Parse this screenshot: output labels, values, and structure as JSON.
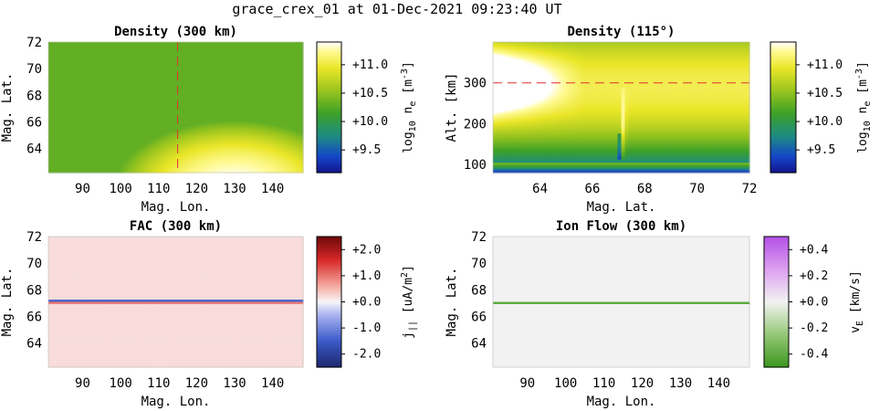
{
  "figure": {
    "title": "grace_crex_01 at 01-Dec-2021 09:23:40 UT"
  },
  "chart_data": [
    {
      "id": "density-300km",
      "type": "heatmap",
      "title": "Density (300 km)",
      "xlabel": "Mag. Lon.",
      "ylabel": "Mag. Lat.",
      "xlim": [
        81,
        148
      ],
      "ylim": [
        62.2,
        72
      ],
      "xticks": [
        "90",
        "100",
        "110",
        "120",
        "130",
        "140"
      ],
      "yticks": [
        "64",
        "66",
        "68",
        "70",
        "72"
      ],
      "xtick_values": [
        90,
        100,
        110,
        120,
        130,
        140
      ],
      "ytick_values": [
        64,
        66,
        68,
        70,
        72
      ],
      "reference_line": {
        "axis": "x",
        "value": 115,
        "color": "#e03030",
        "style": "dashed"
      },
      "field": "density-map",
      "colorbar": {
        "colormap": "ocean-like",
        "range": [
          9.1,
          11.4
        ],
        "ticks": [
          "+9.5",
          "+10.0",
          "+10.5",
          "+11.0"
        ],
        "tick_values": [
          9.5,
          10.0,
          10.5,
          11.0
        ],
        "label_main": "log",
        "label_sub": "10",
        "label_main2": " n",
        "label_sub2": "e",
        "label_rest": " [m",
        "label_sup": "-3",
        "label_end": "]"
      }
    },
    {
      "id": "density-115deg",
      "type": "heatmap",
      "title": "Density (115°)",
      "xlabel": "Mag. Lat.",
      "ylabel": "Alt. [km]",
      "xlim": [
        62.2,
        72
      ],
      "ylim": [
        80,
        400
      ],
      "xticks": [
        "64",
        "66",
        "68",
        "70",
        "72"
      ],
      "yticks": [
        "100",
        "200",
        "300"
      ],
      "xtick_values": [
        64,
        66,
        68,
        70,
        72
      ],
      "ytick_values": [
        100,
        200,
        300
      ],
      "reference_line": {
        "axis": "y",
        "value": 300,
        "color": "#e03030",
        "style": "dashed"
      },
      "field": "density-profile",
      "colorbar": {
        "colormap": "ocean-like",
        "range": [
          9.1,
          11.4
        ],
        "ticks": [
          "+9.5",
          "+10.0",
          "+10.5",
          "+11.0"
        ],
        "tick_values": [
          9.5,
          10.0,
          10.5,
          11.0
        ],
        "label_main": "log",
        "label_sub": "10",
        "label_main2": " n",
        "label_sub2": "e",
        "label_rest": " [m",
        "label_sup": "-3",
        "label_end": "]"
      }
    },
    {
      "id": "fac-300km",
      "type": "heatmap",
      "title": "FAC (300 km)",
      "xlabel": "Mag. Lon.",
      "ylabel": "Mag. Lat.",
      "xlim": [
        81,
        148
      ],
      "ylim": [
        62.2,
        72
      ],
      "xticks": [
        "90",
        "100",
        "110",
        "120",
        "130",
        "140"
      ],
      "yticks": [
        "64",
        "66",
        "68",
        "70",
        "72"
      ],
      "xtick_values": [
        90,
        100,
        110,
        120,
        130,
        140
      ],
      "ytick_values": [
        64,
        66,
        68,
        70,
        72
      ],
      "field": "fac-map",
      "band": {
        "lat_center": 67.1,
        "upper_value": -1.4,
        "lower_value": 1.0,
        "background_value": 0.2
      },
      "colorbar": {
        "colormap": "red-white-blue",
        "range": [
          -2.5,
          2.5
        ],
        "ticks": [
          "+2.0",
          "+1.0",
          "+0.0",
          "-1.0",
          "-2.0"
        ],
        "tick_values": [
          2.0,
          1.0,
          0.0,
          -1.0,
          -2.0
        ],
        "label_main": "j",
        "label_sub": "||",
        "label_rest": " [uA/m",
        "label_sup": "2",
        "label_end": "]"
      }
    },
    {
      "id": "ion-flow-300km",
      "type": "heatmap",
      "title": "Ion Flow (300 km)",
      "xlabel": "Mag. Lon.",
      "ylabel": "Mag. Lat.",
      "xlim": [
        81,
        148
      ],
      "ylim": [
        62.2,
        72
      ],
      "xticks": [
        "90",
        "100",
        "110",
        "120",
        "130",
        "140"
      ],
      "yticks": [
        "64",
        "66",
        "68",
        "70",
        "72"
      ],
      "xtick_values": [
        90,
        100,
        110,
        120,
        130,
        140
      ],
      "ytick_values": [
        64,
        66,
        68,
        70,
        72
      ],
      "field": "flow-map",
      "band": {
        "lat_center": 67.0,
        "value": -0.4,
        "background_value": 0.0
      },
      "colorbar": {
        "colormap": "green-white-purple",
        "range": [
          -0.5,
          0.5
        ],
        "ticks": [
          "+0.4",
          "+0.2",
          "+0.0",
          "-0.2",
          "-0.4"
        ],
        "tick_values": [
          0.4,
          0.2,
          0.0,
          -0.2,
          -0.4
        ],
        "label_main": "v",
        "label_sub": "E",
        "label_rest": " [km/s]"
      }
    }
  ]
}
